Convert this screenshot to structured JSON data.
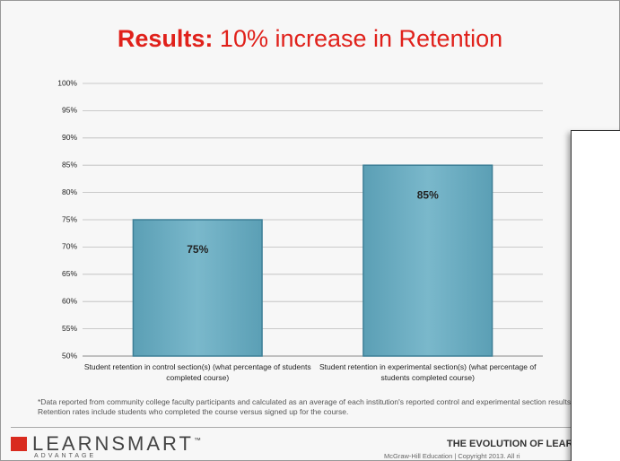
{
  "chart_data": {
    "type": "bar",
    "title_bold": "Results:",
    "title": "10% increase in Retention",
    "categories": [
      "Student retention in control section(s) (what percentage of students completed course)",
      "Student retention in experimental section(s) (what percentage of students completed course)"
    ],
    "values": [
      75,
      85
    ],
    "value_labels": [
      "75%",
      "85%"
    ],
    "color": "#6aabbf",
    "ylim": [
      50,
      100
    ],
    "yticks": [
      {
        "value": 50,
        "label": "50%"
      },
      {
        "value": 55,
        "label": "55%"
      },
      {
        "value": 60,
        "label": "60%"
      },
      {
        "value": 65,
        "label": "65%"
      },
      {
        "value": 70,
        "label": "70%"
      },
      {
        "value": 75,
        "label": "75%"
      },
      {
        "value": 80,
        "label": "80%"
      },
      {
        "value": 85,
        "label": "85%"
      },
      {
        "value": 90,
        "label": "90%"
      },
      {
        "value": 95,
        "label": "95%"
      },
      {
        "value": 100,
        "label": "100%"
      }
    ],
    "grid": true
  },
  "footnote": [
    "*Data reported from community college faculty participants and calculated as an average of each institution's reported control and experimental section results.",
    "Retention rates include students who completed the course versus signed up for the course."
  ],
  "footer": {
    "logo": "LEARNSMART",
    "logo_tm": "™",
    "logo_sub": "ADVANTAGE",
    "tagline": "THE EVOLUTION OF LEAR",
    "copyright": "McGraw-Hill Education | Copyright 2013. All ri"
  }
}
